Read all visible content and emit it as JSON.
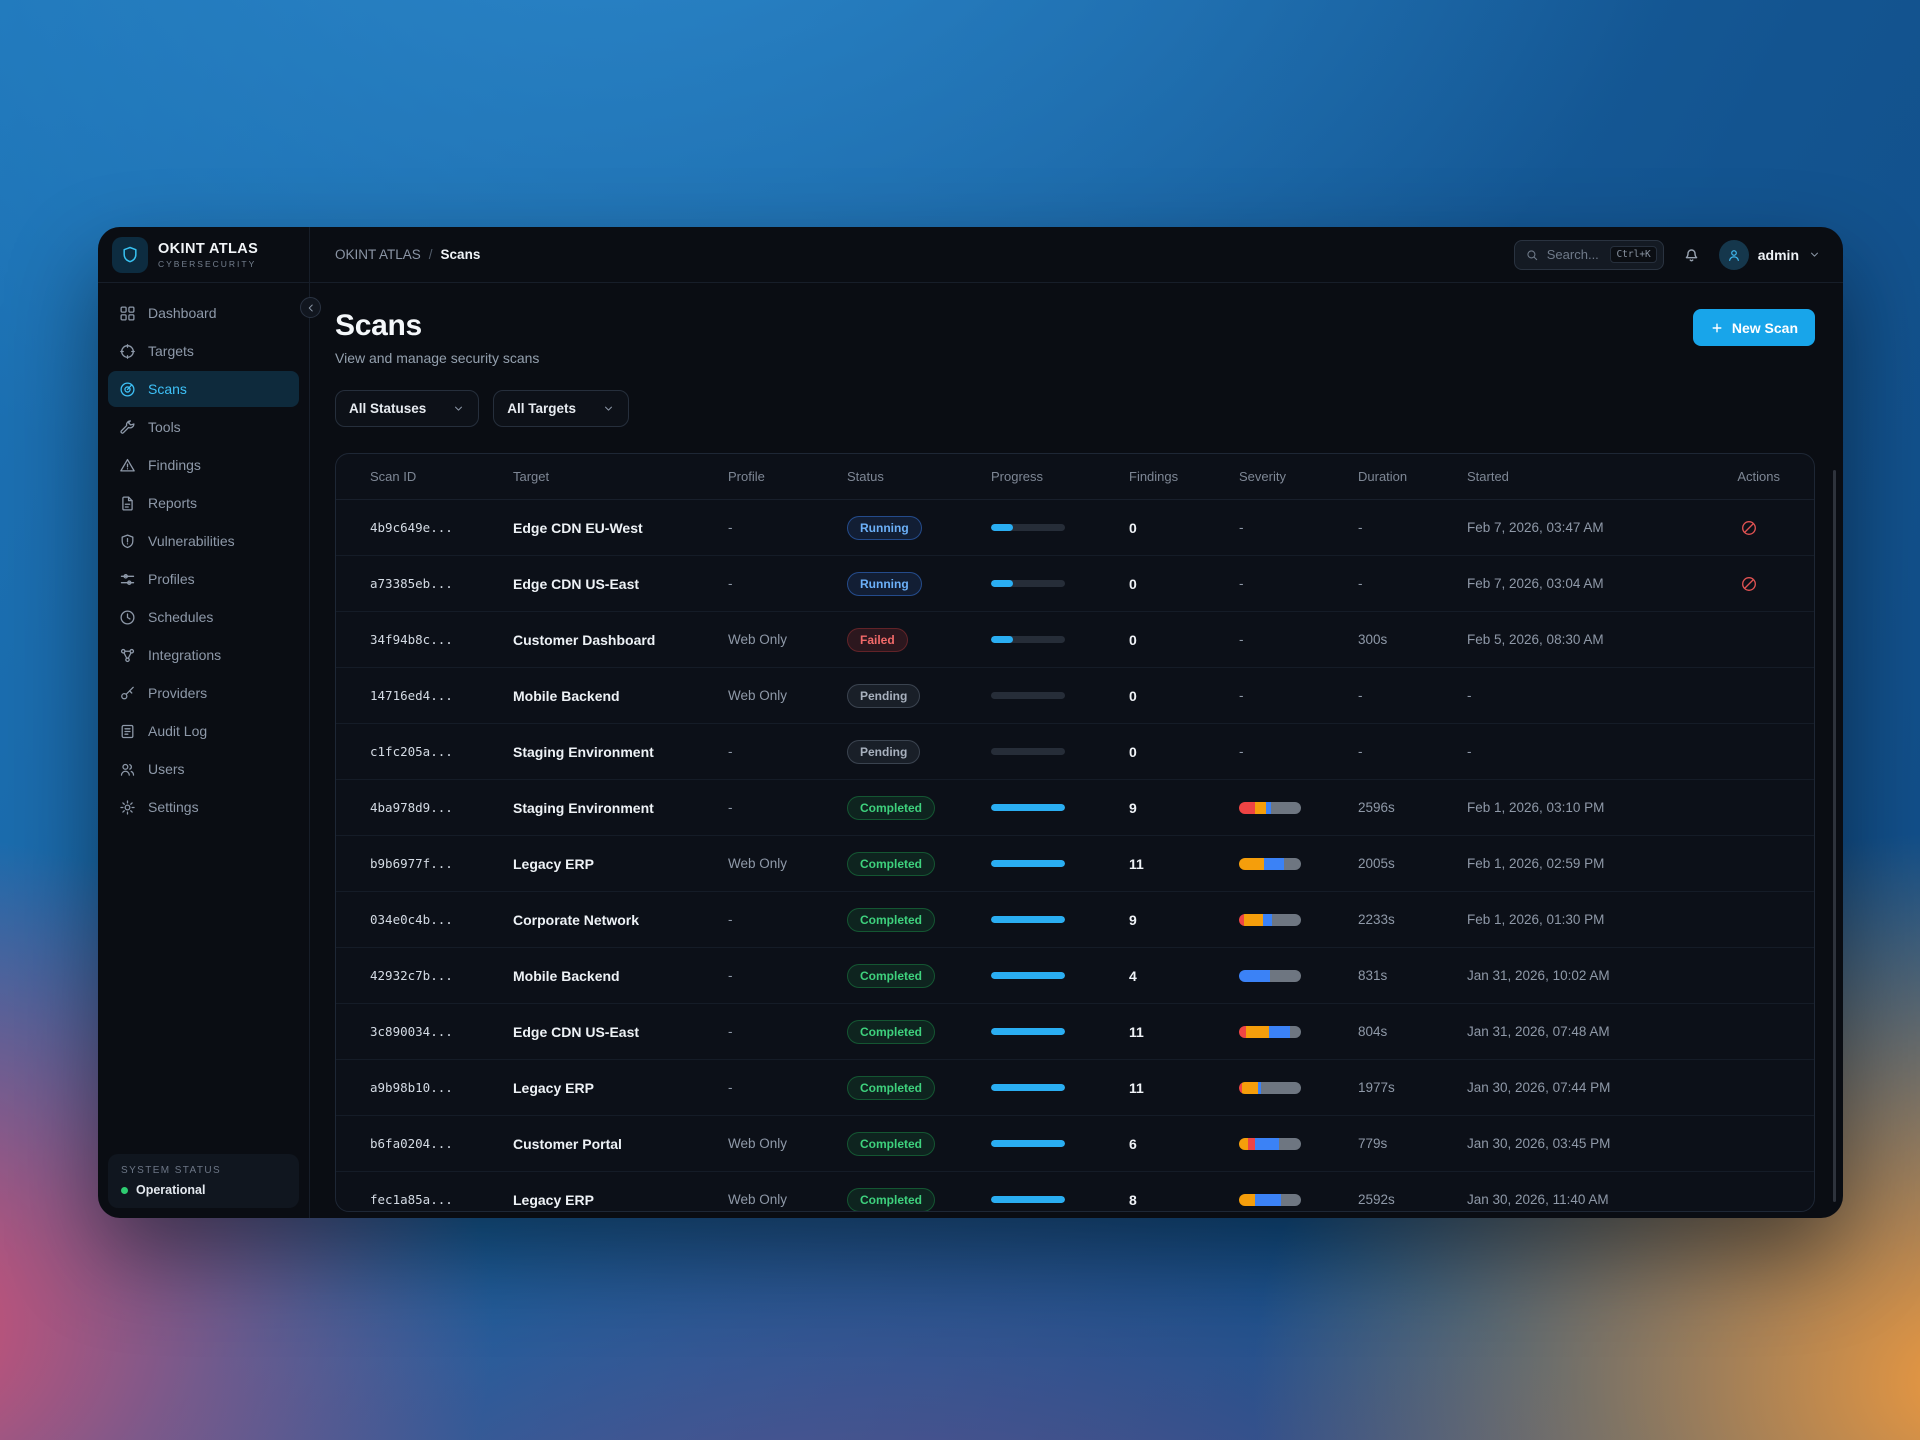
{
  "brand": {
    "name": "OKINT ATLAS",
    "tagline": "CYBERSECURITY"
  },
  "breadcrumb": {
    "root": "OKINT ATLAS",
    "separator": "/",
    "current": "Scans"
  },
  "topbar": {
    "search_placeholder": "Search...",
    "search_shortcut": "Ctrl+K",
    "user": "admin"
  },
  "sidebar": {
    "active_item": "Scans",
    "items": [
      {
        "label": "Dashboard"
      },
      {
        "label": "Targets"
      },
      {
        "label": "Scans"
      },
      {
        "label": "Tools"
      },
      {
        "label": "Findings"
      },
      {
        "label": "Reports"
      },
      {
        "label": "Vulnerabilities"
      },
      {
        "label": "Profiles"
      },
      {
        "label": "Schedules"
      },
      {
        "label": "Integrations"
      },
      {
        "label": "Providers"
      },
      {
        "label": "Audit Log"
      },
      {
        "label": "Users"
      },
      {
        "label": "Settings"
      }
    ],
    "system_status": {
      "label": "SYSTEM STATUS",
      "value": "Operational",
      "color": "#2ecc71"
    }
  },
  "page": {
    "title": "Scans",
    "subtitle": "View and manage security scans",
    "new_scan_label": "New Scan",
    "plus": "+"
  },
  "filters": {
    "status": "All Statuses",
    "target": "All Targets"
  },
  "colors": {
    "accent": "#18a5ea",
    "progress_fill": "#2aaef2",
    "severity_critical": "#ef4444",
    "severity_high": "#f59e0b",
    "severity_medium": "#3b82f6",
    "severity_low": "#6e7681"
  },
  "table": {
    "columns": [
      "Scan ID",
      "Target",
      "Profile",
      "Status",
      "Progress",
      "Findings",
      "Severity",
      "Duration",
      "Started",
      "Actions"
    ],
    "rows": [
      {
        "scan_id": "4b9c649e...",
        "target": "Edge CDN EU-West",
        "profile": "-",
        "status": "Running",
        "progress": 30,
        "findings": "0",
        "severity": null,
        "duration": "-",
        "started": "Feb 7, 2026, 03:47 AM",
        "action": "cancel"
      },
      {
        "scan_id": "a73385eb...",
        "target": "Edge CDN US-East",
        "profile": "-",
        "status": "Running",
        "progress": 30,
        "findings": "0",
        "severity": null,
        "duration": "-",
        "started": "Feb 7, 2026, 03:04 AM",
        "action": "cancel"
      },
      {
        "scan_id": "34f94b8c...",
        "target": "Customer Dashboard",
        "profile": "Web Only",
        "status": "Failed",
        "progress": 30,
        "findings": "0",
        "severity": null,
        "duration": "300s",
        "started": "Feb 5, 2026, 08:30 AM",
        "action": ""
      },
      {
        "scan_id": "14716ed4...",
        "target": "Mobile Backend",
        "profile": "Web Only",
        "status": "Pending",
        "progress": 0,
        "findings": "0",
        "severity": null,
        "duration": "-",
        "started": "-",
        "action": ""
      },
      {
        "scan_id": "c1fc205a...",
        "target": "Staging Environment",
        "profile": "-",
        "status": "Pending",
        "progress": 0,
        "findings": "0",
        "severity": null,
        "duration": "-",
        "started": "-",
        "action": ""
      },
      {
        "scan_id": "4ba978d9...",
        "target": "Staging Environment",
        "profile": "-",
        "status": "Completed",
        "progress": 100,
        "findings": "9",
        "severity": [
          {
            "level": "critical",
            "pct": 26
          },
          {
            "level": "high",
            "pct": 17
          },
          {
            "level": "medium",
            "pct": 9
          },
          {
            "level": "low",
            "pct": 48
          }
        ],
        "duration": "2596s",
        "started": "Feb 1, 2026, 03:10 PM",
        "action": ""
      },
      {
        "scan_id": "b9b6977f...",
        "target": "Legacy ERP",
        "profile": "Web Only",
        "status": "Completed",
        "progress": 100,
        "findings": "11",
        "severity": [
          {
            "level": "high",
            "pct": 40
          },
          {
            "level": "medium",
            "pct": 32
          },
          {
            "level": "low",
            "pct": 28
          }
        ],
        "duration": "2005s",
        "started": "Feb 1, 2026, 02:59 PM",
        "action": ""
      },
      {
        "scan_id": "034e0c4b...",
        "target": "Corporate Network",
        "profile": "-",
        "status": "Completed",
        "progress": 100,
        "findings": "9",
        "severity": [
          {
            "level": "critical",
            "pct": 8
          },
          {
            "level": "high",
            "pct": 30
          },
          {
            "level": "medium",
            "pct": 16
          },
          {
            "level": "low",
            "pct": 46
          }
        ],
        "duration": "2233s",
        "started": "Feb 1, 2026, 01:30 PM",
        "action": ""
      },
      {
        "scan_id": "42932c7b...",
        "target": "Mobile Backend",
        "profile": "-",
        "status": "Completed",
        "progress": 100,
        "findings": "4",
        "severity": [
          {
            "level": "medium",
            "pct": 50
          },
          {
            "level": "low",
            "pct": 50
          }
        ],
        "duration": "831s",
        "started": "Jan 31, 2026, 10:02 AM",
        "action": ""
      },
      {
        "scan_id": "3c890034...",
        "target": "Edge CDN US-East",
        "profile": "-",
        "status": "Completed",
        "progress": 100,
        "findings": "11",
        "severity": [
          {
            "level": "critical",
            "pct": 12
          },
          {
            "level": "high",
            "pct": 37
          },
          {
            "level": "medium",
            "pct": 33
          },
          {
            "level": "low",
            "pct": 18
          }
        ],
        "duration": "804s",
        "started": "Jan 31, 2026, 07:48 AM",
        "action": ""
      },
      {
        "scan_id": "a9b98b10...",
        "target": "Legacy ERP",
        "profile": "-",
        "status": "Completed",
        "progress": 100,
        "findings": "11",
        "severity": [
          {
            "level": "critical",
            "pct": 5
          },
          {
            "level": "high",
            "pct": 25
          },
          {
            "level": "medium",
            "pct": 6
          },
          {
            "level": "low",
            "pct": 64
          }
        ],
        "duration": "1977s",
        "started": "Jan 30, 2026, 07:44 PM",
        "action": ""
      },
      {
        "scan_id": "b6fa0204...",
        "target": "Customer Portal",
        "profile": "Web Only",
        "status": "Completed",
        "progress": 100,
        "findings": "6",
        "severity": [
          {
            "level": "high",
            "pct": 14
          },
          {
            "level": "critical",
            "pct": 12
          },
          {
            "level": "medium",
            "pct": 38
          },
          {
            "level": "low",
            "pct": 36
          }
        ],
        "duration": "779s",
        "started": "Jan 30, 2026, 03:45 PM",
        "action": ""
      },
      {
        "scan_id": "fec1a85a...",
        "target": "Legacy ERP",
        "profile": "Web Only",
        "status": "Completed",
        "progress": 100,
        "findings": "8",
        "severity": [
          {
            "level": "high",
            "pct": 26
          },
          {
            "level": "medium",
            "pct": 42
          },
          {
            "level": "low",
            "pct": 32
          }
        ],
        "duration": "2592s",
        "started": "Jan 30, 2026, 11:40 AM",
        "action": ""
      }
    ]
  }
}
